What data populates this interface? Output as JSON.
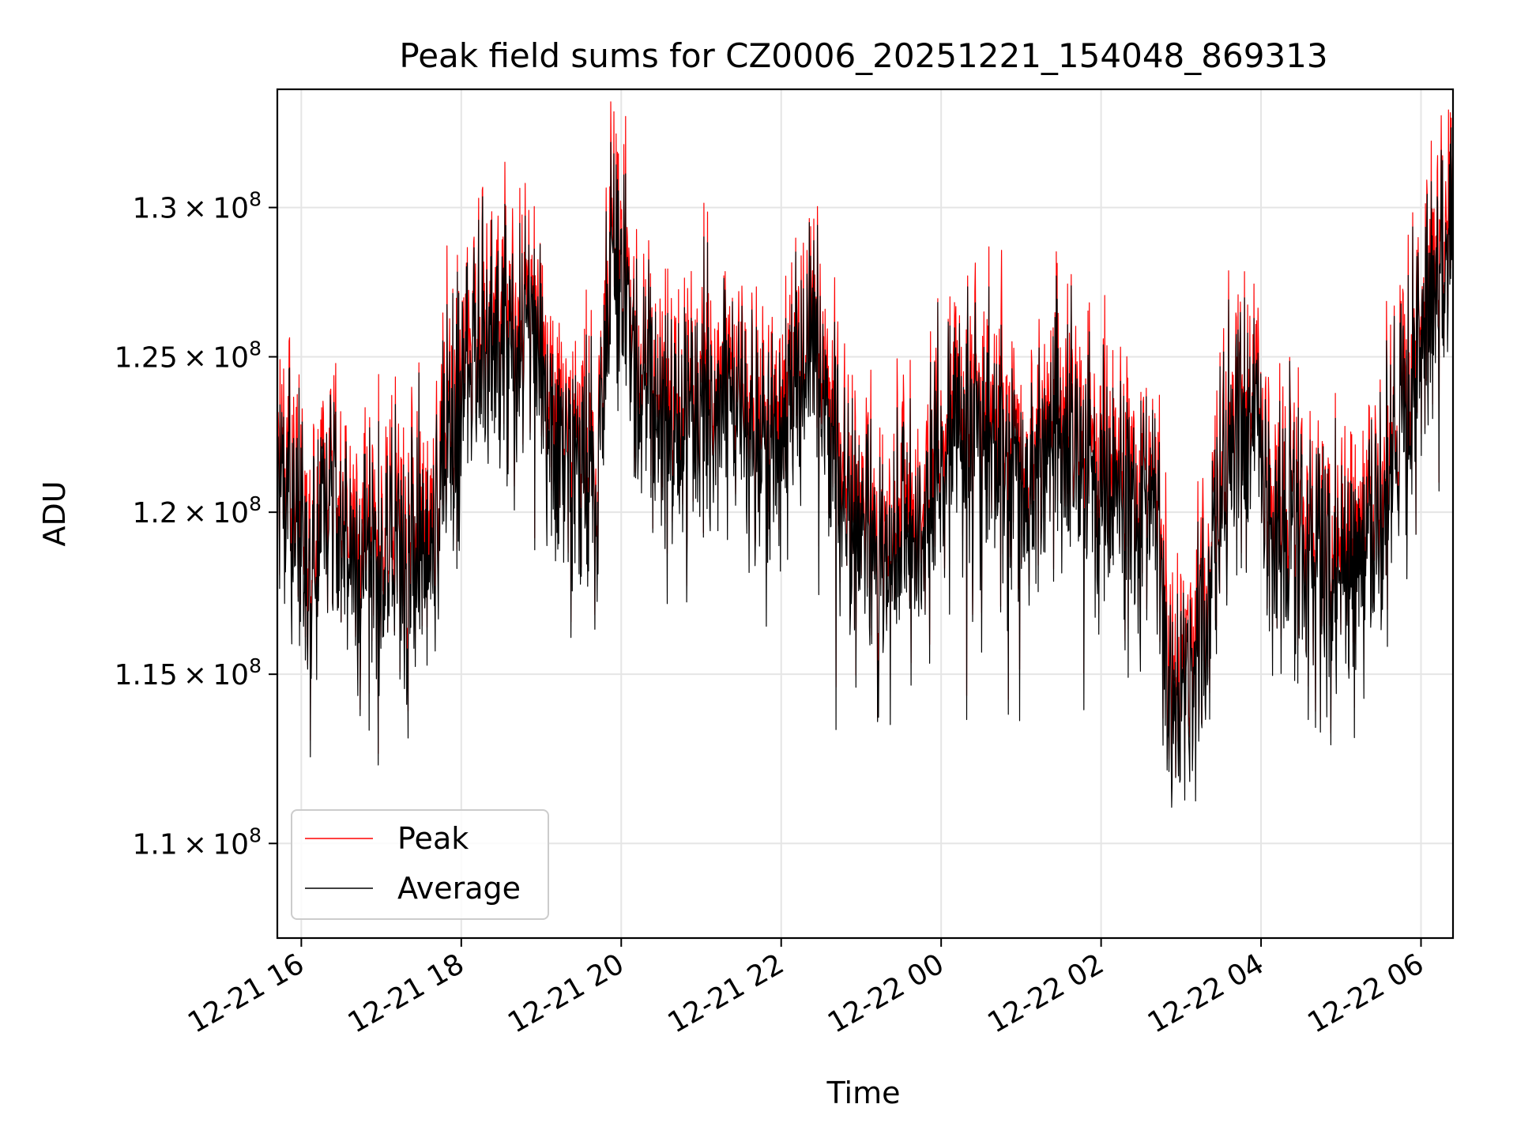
{
  "chart_data": {
    "type": "line",
    "title": "Peak field sums for CZ0006_20251221_154048_869313",
    "xlabel": "Time",
    "ylabel": "ADU",
    "yscale": "log",
    "ylim": [
      107300000,
      134100000
    ],
    "xlim_hours": [
      15.7,
      30.4
    ],
    "grid": true,
    "legend_position": "lower-left",
    "x_ticks": [
      {
        "hour": 16,
        "label": "12-21 16"
      },
      {
        "hour": 18,
        "label": "12-21 18"
      },
      {
        "hour": 20,
        "label": "12-21 20"
      },
      {
        "hour": 22,
        "label": "12-21 22"
      },
      {
        "hour": 24,
        "label": "12-22 00"
      },
      {
        "hour": 26,
        "label": "12-22 02"
      },
      {
        "hour": 28,
        "label": "12-22 04"
      },
      {
        "hour": 30,
        "label": "12-22 06"
      }
    ],
    "y_ticks": [
      {
        "value": 110000000,
        "mantissa": "1.1",
        "exponent": "8"
      },
      {
        "value": 115000000,
        "mantissa": "1.15",
        "exponent": "8"
      },
      {
        "value": 120000000,
        "mantissa": "1.2",
        "exponent": "8"
      },
      {
        "value": 125000000,
        "mantissa": "1.25",
        "exponent": "8"
      },
      {
        "value": 130000000,
        "mantissa": "1.3",
        "exponent": "8"
      }
    ],
    "series": [
      {
        "name": "Peak",
        "color": "#ff0000"
      },
      {
        "name": "Average",
        "color": "#000000"
      }
    ],
    "baseline_trend": {
      "hours": [
        15.7,
        15.9,
        16.1,
        16.3,
        16.6,
        16.8,
        17.1,
        17.4,
        17.7,
        17.9,
        18.1,
        18.4,
        18.7,
        18.9,
        19.0,
        19.2,
        19.5,
        19.7,
        19.9,
        20.1,
        20.3,
        20.5,
        20.8,
        21.1,
        21.4,
        21.7,
        22.0,
        22.2,
        22.4,
        22.6,
        22.8,
        23.1,
        23.4,
        23.7,
        24.0,
        24.2,
        24.5,
        24.8,
        25.1,
        25.4,
        25.7,
        25.9,
        26.1,
        26.4,
        26.7,
        26.8,
        26.9,
        27.1,
        27.3,
        27.5,
        27.7,
        27.9,
        28.0,
        28.2,
        28.5,
        28.8,
        29.1,
        29.4,
        29.7,
        29.9,
        30.0,
        30.2,
        30.4
      ],
      "values": [
        123000000,
        120000000,
        117500000,
        120000000,
        119500000,
        117500000,
        118500000,
        118500000,
        120000000,
        123000000,
        125500000,
        126000000,
        125500000,
        126500000,
        124000000,
        122000000,
        121500000,
        121000000,
        128000000,
        126500000,
        123500000,
        122500000,
        122000000,
        123500000,
        124000000,
        122500000,
        122500000,
        124000000,
        126500000,
        122000000,
        120500000,
        119500000,
        118500000,
        119500000,
        121500000,
        122500000,
        122500000,
        121500000,
        120500000,
        122500000,
        122000000,
        121000000,
        121000000,
        120000000,
        119500000,
        116000000,
        114500000,
        114000000,
        116500000,
        120500000,
        122500000,
        122000000,
        121000000,
        119500000,
        119000000,
        118000000,
        118500000,
        119500000,
        121500000,
        124500000,
        126000000,
        127500000,
        129500000
      ]
    }
  }
}
